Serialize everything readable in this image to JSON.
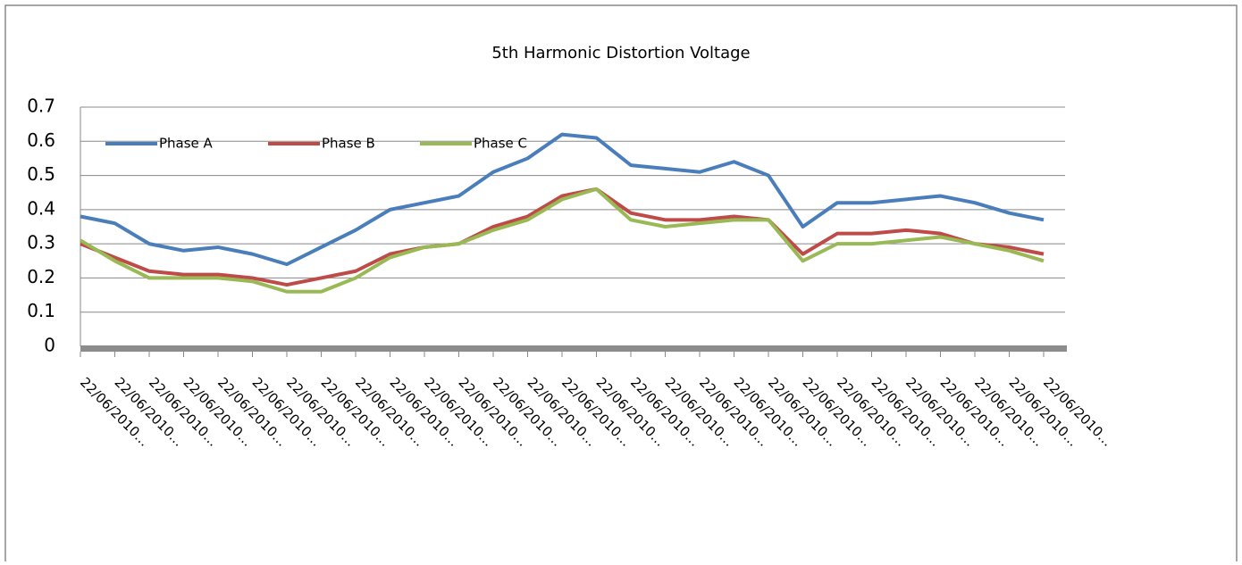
{
  "chart_data": {
    "type": "line",
    "title": "5th Harmonic Distortion Voltage",
    "categories": [
      "22/06/2010…",
      "22/06/2010…",
      "22/06/2010…",
      "22/06/2010…",
      "22/06/2010…",
      "22/06/2010…",
      "22/06/2010…",
      "22/06/2010…",
      "22/06/2010…",
      "22/06/2010…",
      "22/06/2010…",
      "22/06/2010…",
      "22/06/2010…",
      "22/06/2010…",
      "22/06/2010…",
      "22/06/2010…",
      "22/06/2010…",
      "22/06/2010…",
      "22/06/2010…",
      "22/06/2010…",
      "22/06/2010…",
      "22/06/2010…",
      "22/06/2010…",
      "22/06/2010…",
      "22/06/2010…",
      "22/06/2010…",
      "22/06/2010…",
      "22/06/2010…",
      "22/06/2010…"
    ],
    "series": [
      {
        "name": "Phase A",
        "color": "#4a7ebb",
        "values": [
          0.38,
          0.36,
          0.3,
          0.28,
          0.29,
          0.27,
          0.24,
          0.29,
          0.34,
          0.4,
          0.42,
          0.44,
          0.51,
          0.55,
          0.62,
          0.61,
          0.53,
          0.52,
          0.51,
          0.54,
          0.5,
          0.35,
          0.42,
          0.42,
          0.43,
          0.44,
          0.42,
          0.39,
          0.37
        ]
      },
      {
        "name": "Phase B",
        "color": "#be4b48",
        "values": [
          0.3,
          0.26,
          0.22,
          0.21,
          0.21,
          0.2,
          0.18,
          0.2,
          0.22,
          0.27,
          0.29,
          0.3,
          0.35,
          0.38,
          0.44,
          0.46,
          0.39,
          0.37,
          0.37,
          0.38,
          0.37,
          0.27,
          0.33,
          0.33,
          0.34,
          0.33,
          0.3,
          0.29,
          0.27
        ]
      },
      {
        "name": "Phase C",
        "color": "#98b954",
        "values": [
          0.31,
          0.25,
          0.2,
          0.2,
          0.2,
          0.19,
          0.16,
          0.16,
          0.2,
          0.26,
          0.29,
          0.3,
          0.34,
          0.37,
          0.43,
          0.46,
          0.37,
          0.35,
          0.36,
          0.37,
          0.37,
          0.25,
          0.3,
          0.3,
          0.31,
          0.32,
          0.3,
          0.28,
          0.25
        ]
      }
    ],
    "ylim": [
      0,
      0.7
    ],
    "yticks": [
      0,
      0.1,
      0.2,
      0.3,
      0.4,
      0.5,
      0.6,
      0.7
    ],
    "grid": true,
    "legend": "top-left"
  }
}
